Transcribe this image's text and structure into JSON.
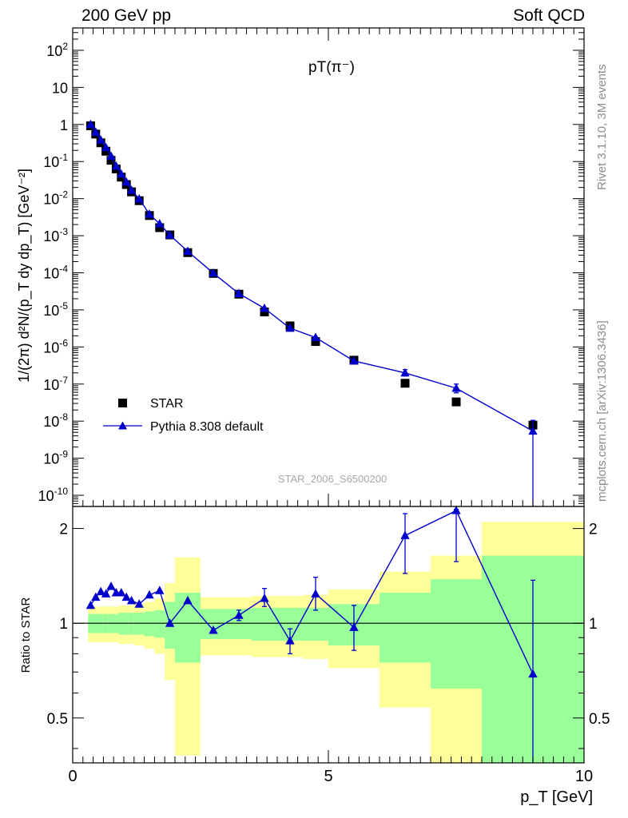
{
  "header": {
    "left": "200 GeV pp",
    "right": "Soft QCD"
  },
  "side_labels": {
    "rivet": "Rivet 3.1.10,  3M events",
    "mcplots": "mcplots.cern.ch [arXiv:1306.3436]"
  },
  "chart_data": [
    {
      "type": "scatter",
      "title": "pT(π⁻)",
      "ylabel": "1/(2π) d²N/(p_T dy dp_T) [GeV⁻²]",
      "xlabel": "p_T [GeV]",
      "yscale": "log",
      "xlim": [
        0,
        10
      ],
      "ylim": [
        5e-11,
        400
      ],
      "yticks": [
        {
          "v": 1e-10,
          "label": "10",
          "exp": "-10"
        },
        {
          "v": 1e-09,
          "label": "10",
          "exp": "-9"
        },
        {
          "v": 1e-08,
          "label": "10",
          "exp": "-8"
        },
        {
          "v": 1e-07,
          "label": "10",
          "exp": "-7"
        },
        {
          "v": 1e-06,
          "label": "10",
          "exp": "-6"
        },
        {
          "v": 1e-05,
          "label": "10",
          "exp": "-5"
        },
        {
          "v": 0.0001,
          "label": "10",
          "exp": "-4"
        },
        {
          "v": 0.001,
          "label": "10",
          "exp": "-3"
        },
        {
          "v": 0.01,
          "label": "10",
          "exp": "-2"
        },
        {
          "v": 0.1,
          "label": "10",
          "exp": "-1"
        },
        {
          "v": 1,
          "label": "1",
          "exp": ""
        },
        {
          "v": 10,
          "label": "10",
          "exp": ""
        },
        {
          "v": 100,
          "label": "10",
          "exp": "2"
        }
      ],
      "watermark": "STAR_2006_S6500200",
      "legend_position": "bottom-left",
      "series": [
        {
          "name": "STAR",
          "marker": "square",
          "color": "#000000",
          "x": [
            0.35,
            0.45,
            0.55,
            0.65,
            0.75,
            0.85,
            0.95,
            1.05,
            1.15,
            1.3,
            1.5,
            1.7,
            1.9,
            2.25,
            2.75,
            3.25,
            3.75,
            4.25,
            4.75,
            5.5,
            6.5,
            7.5,
            9.0
          ],
          "y": [
            0.92,
            0.55,
            0.32,
            0.19,
            0.108,
            0.063,
            0.038,
            0.024,
            0.0152,
            0.0088,
            0.0035,
            0.00165,
            0.00105,
            0.00035,
            9.6e-05,
            2.65e-05,
            8.8e-06,
            3.7e-06,
            1.4e-06,
            4.4e-07,
            1.05e-07,
            3.3e-08,
            7.8e-09
          ]
        },
        {
          "name": "Pythia 8.308 default",
          "marker": "triangle",
          "color": "#0000cc",
          "x": [
            0.35,
            0.45,
            0.55,
            0.65,
            0.75,
            0.85,
            0.95,
            1.05,
            1.15,
            1.3,
            1.5,
            1.7,
            1.9,
            2.25,
            2.75,
            3.25,
            3.75,
            4.25,
            4.75,
            5.5,
            6.5,
            7.5,
            9.0
          ],
          "y": [
            1.0,
            0.62,
            0.38,
            0.24,
            0.14,
            0.075,
            0.046,
            0.028,
            0.0168,
            0.0098,
            0.0038,
            0.0021,
            0.00104,
            0.00038,
            9.8e-05,
            2.75e-05,
            1.1e-05,
            3.2e-06,
            1.8e-06,
            4.2e-07,
            2e-07,
            7.7e-08,
            5.4e-09
          ],
          "y_low": [
            1.0,
            0.62,
            0.38,
            0.24,
            0.14,
            0.075,
            0.046,
            0.028,
            0.0168,
            0.0098,
            0.0038,
            0.0021,
            0.00104,
            0.00038,
            9.8e-05,
            2.75e-05,
            1.1e-05,
            3.2e-06,
            1.8e-06,
            4.2e-07,
            1.65e-07,
            5.8e-08,
            5e-11
          ],
          "y_high": [
            1.0,
            0.62,
            0.38,
            0.24,
            0.14,
            0.075,
            0.046,
            0.028,
            0.0168,
            0.0098,
            0.0038,
            0.0021,
            0.00104,
            0.00038,
            9.8e-05,
            2.75e-05,
            1.1e-05,
            3.2e-06,
            1.8e-06,
            4.2e-07,
            2.45e-07,
            1e-07,
            1.05e-08
          ]
        }
      ]
    },
    {
      "type": "scatter",
      "ylabel": "Ratio to STAR",
      "xlabel": "p_T [GeV]",
      "yscale": "log",
      "xlim": [
        0,
        10
      ],
      "ylim": [
        0.36,
        2.35
      ],
      "xticks": [
        {
          "v": 0,
          "label": "0"
        },
        {
          "v": 5,
          "label": "5"
        },
        {
          "v": 10,
          "label": "10"
        }
      ],
      "yticks": [
        {
          "v": 0.5,
          "label": "0.5"
        },
        {
          "v": 1,
          "label": "1"
        },
        {
          "v": 2,
          "label": "2"
        }
      ],
      "reference_line": 1,
      "bands": {
        "edges": [
          0.3,
          0.4,
          0.5,
          0.6,
          0.7,
          0.8,
          0.9,
          1.0,
          1.1,
          1.2,
          1.4,
          1.6,
          1.8,
          2.0,
          2.5,
          3.0,
          3.5,
          4.0,
          4.5,
          5.0,
          6.0,
          7.0,
          8.0,
          10.0
        ],
        "yellow_low": [
          0.87,
          0.87,
          0.87,
          0.87,
          0.87,
          0.87,
          0.86,
          0.86,
          0.86,
          0.85,
          0.83,
          0.8,
          0.66,
          0.38,
          0.79,
          0.79,
          0.78,
          0.78,
          0.77,
          0.72,
          0.54,
          0.36,
          0.36
        ],
        "yellow_high": [
          1.13,
          1.13,
          1.13,
          1.13,
          1.13,
          1.13,
          1.14,
          1.14,
          1.14,
          1.15,
          1.17,
          1.2,
          1.34,
          1.62,
          1.21,
          1.21,
          1.22,
          1.22,
          1.23,
          1.28,
          1.46,
          1.64,
          2.1
        ],
        "green_low": [
          0.93,
          0.93,
          0.93,
          0.93,
          0.93,
          0.93,
          0.92,
          0.92,
          0.92,
          0.92,
          0.91,
          0.9,
          0.83,
          0.75,
          0.89,
          0.89,
          0.88,
          0.88,
          0.88,
          0.85,
          0.75,
          0.62,
          0.36
        ],
        "green_high": [
          1.07,
          1.07,
          1.07,
          1.07,
          1.07,
          1.07,
          1.08,
          1.08,
          1.08,
          1.08,
          1.09,
          1.1,
          1.17,
          1.25,
          1.11,
          1.11,
          1.12,
          1.12,
          1.12,
          1.15,
          1.25,
          1.38,
          1.64
        ]
      },
      "series": [
        {
          "name": "Pythia 8.308 default",
          "marker": "triangle",
          "color": "#0000cc",
          "x": [
            0.35,
            0.45,
            0.55,
            0.65,
            0.75,
            0.85,
            0.95,
            1.05,
            1.15,
            1.3,
            1.5,
            1.7,
            1.9,
            2.25,
            2.75,
            3.25,
            3.75,
            4.25,
            4.75,
            5.5,
            6.5,
            7.5,
            9.0
          ],
          "y": [
            1.14,
            1.21,
            1.26,
            1.24,
            1.31,
            1.25,
            1.25,
            1.21,
            1.18,
            1.15,
            1.23,
            1.27,
            1.0,
            1.18,
            0.95,
            1.06,
            1.2,
            0.88,
            1.24,
            0.97,
            1.9,
            2.28,
            0.69
          ],
          "err_low": [
            1.14,
            1.21,
            1.26,
            1.24,
            1.31,
            1.25,
            1.25,
            1.21,
            1.18,
            1.15,
            1.23,
            1.27,
            1.0,
            1.18,
            0.95,
            1.02,
            1.13,
            0.8,
            1.1,
            0.82,
            1.44,
            1.57,
            0.3
          ],
          "err_high": [
            1.14,
            1.21,
            1.26,
            1.24,
            1.31,
            1.25,
            1.25,
            1.21,
            1.18,
            1.15,
            1.23,
            1.27,
            1.0,
            1.18,
            0.95,
            1.1,
            1.29,
            0.96,
            1.4,
            1.14,
            2.23,
            2.3,
            1.37
          ]
        }
      ]
    }
  ]
}
